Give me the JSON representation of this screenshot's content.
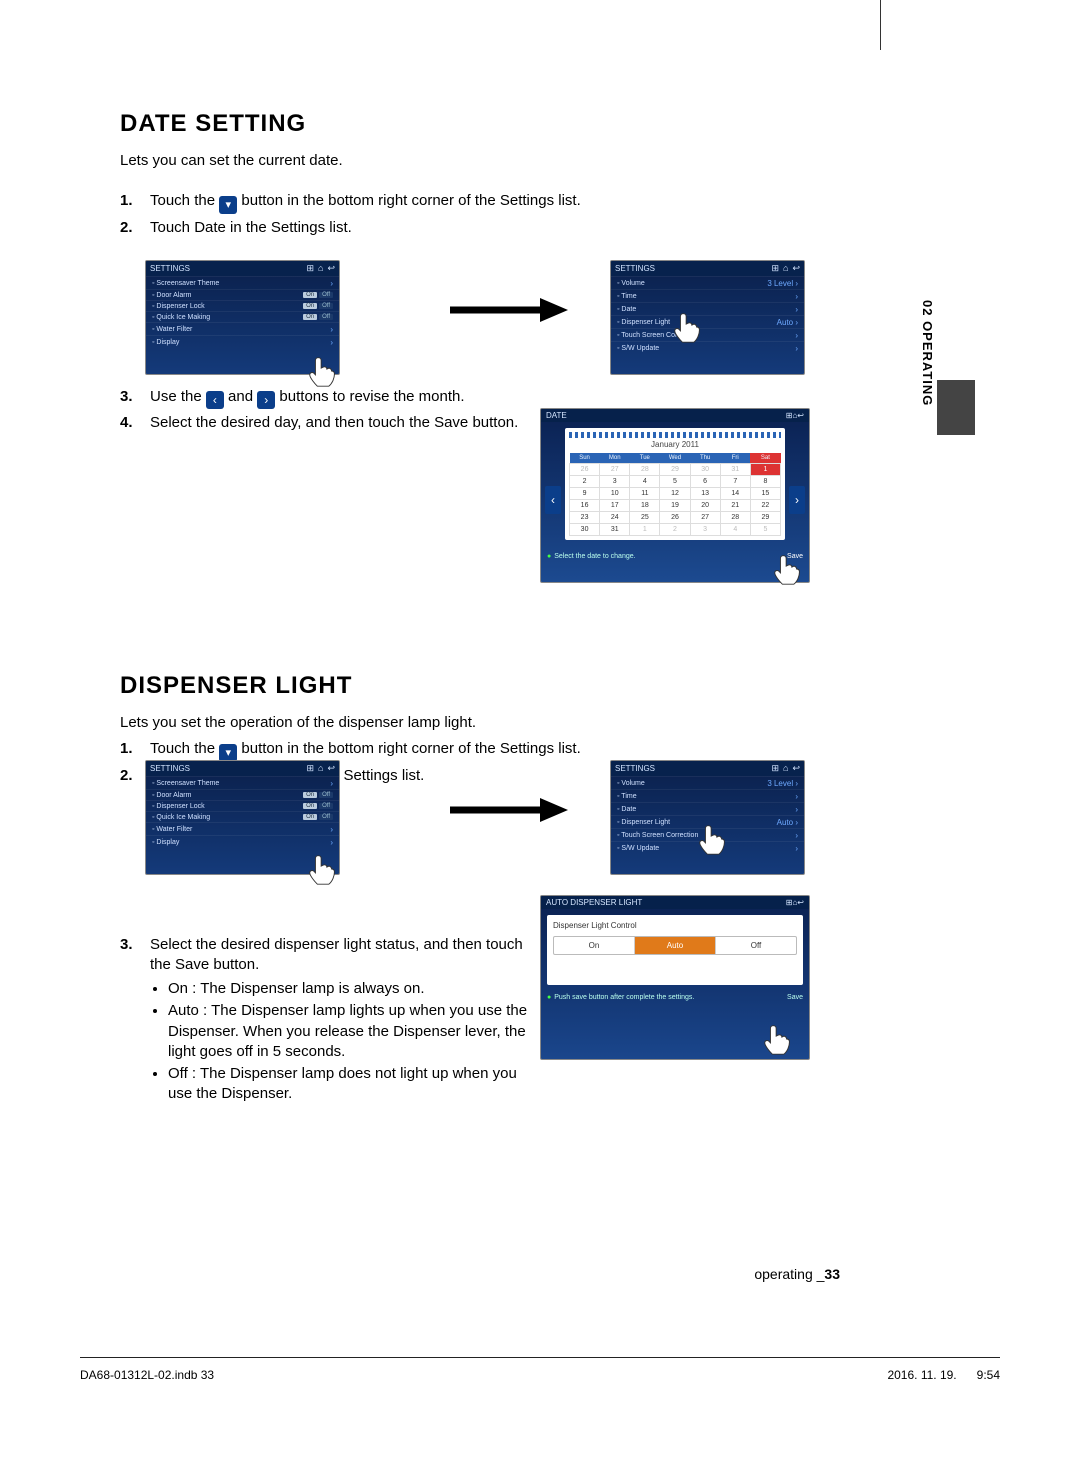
{
  "side_tab": "02  OPERATING",
  "section1": {
    "title": "DATE SETTING",
    "intro": "Lets you can set the current date.",
    "step1a": "Touch the ",
    "step1b": " button in the bottom right corner of the Settings list.",
    "step2": "Touch Date in the Settings list.",
    "step3a": "Use the ",
    "step3b": " and ",
    "step3c": " buttons to revise the month.",
    "step4": "Select the desired day, and then touch the Save button."
  },
  "settings_screen_a": {
    "title": "SETTINGS",
    "rows": [
      {
        "label": "Screensaver Theme",
        "chev": true
      },
      {
        "label": "Door Alarm",
        "toggle": [
          "On",
          "Off"
        ]
      },
      {
        "label": "Dispenser Lock",
        "toggle": [
          "On",
          "Off"
        ]
      },
      {
        "label": "Quick Ice Making",
        "toggle": [
          "On",
          "Off"
        ]
      },
      {
        "label": "Water Filter",
        "chev": true
      },
      {
        "label": "Display",
        "chev": true
      }
    ]
  },
  "settings_screen_b": {
    "title": "SETTINGS",
    "rows": [
      {
        "label": "Volume",
        "right": "3 Level",
        "chev": true
      },
      {
        "label": "Time",
        "chev": true
      },
      {
        "label": "Date",
        "chev": true
      },
      {
        "label": "Dispenser Light",
        "right": "Auto",
        "chev": true
      },
      {
        "label": "Touch Screen Correction",
        "chev": true
      },
      {
        "label": "S/W Update",
        "chev": true
      }
    ]
  },
  "calendar": {
    "title": "DATE",
    "month": "January 2011",
    "dow": [
      "Sun",
      "Mon",
      "Tue",
      "Wed",
      "Thu",
      "Fri",
      "Sat"
    ],
    "weeks": [
      [
        {
          "d": "26",
          "dim": 1
        },
        {
          "d": "27",
          "dim": 1
        },
        {
          "d": "28",
          "dim": 1
        },
        {
          "d": "29",
          "dim": 1
        },
        {
          "d": "30",
          "dim": 1
        },
        {
          "d": "31",
          "dim": 1
        },
        {
          "d": "1",
          "sel": 1
        }
      ],
      [
        {
          "d": "2"
        },
        {
          "d": "3"
        },
        {
          "d": "4"
        },
        {
          "d": "5"
        },
        {
          "d": "6"
        },
        {
          "d": "7"
        },
        {
          "d": "8"
        }
      ],
      [
        {
          "d": "9"
        },
        {
          "d": "10"
        },
        {
          "d": "11"
        },
        {
          "d": "12"
        },
        {
          "d": "13"
        },
        {
          "d": "14"
        },
        {
          "d": "15"
        }
      ],
      [
        {
          "d": "16"
        },
        {
          "d": "17"
        },
        {
          "d": "18"
        },
        {
          "d": "19"
        },
        {
          "d": "20"
        },
        {
          "d": "21"
        },
        {
          "d": "22"
        }
      ],
      [
        {
          "d": "23"
        },
        {
          "d": "24"
        },
        {
          "d": "25"
        },
        {
          "d": "26"
        },
        {
          "d": "27"
        },
        {
          "d": "28"
        },
        {
          "d": "29"
        }
      ],
      [
        {
          "d": "30"
        },
        {
          "d": "31"
        },
        {
          "d": "1",
          "dim": 1
        },
        {
          "d": "2",
          "dim": 1
        },
        {
          "d": "3",
          "dim": 1
        },
        {
          "d": "4",
          "dim": 1
        },
        {
          "d": "5",
          "dim": 1
        }
      ]
    ],
    "hint": "Select the date to change.",
    "save": "Save"
  },
  "section2": {
    "title": "DISPENSER LIGHT",
    "intro": "Lets you set the operation of the dispenser lamp light.",
    "step1a": "Touch the ",
    "step1b": " button in the bottom right corner of the Settings list.",
    "step2": "Touch Dispenser Light in the Settings list.",
    "step3": "Select the desired dispenser light status, and then touch the Save button.",
    "b1": "On : The Dispenser lamp is always on.",
    "b2": "Auto : The Dispenser lamp lights up when you use the Dispenser. When you release the Dispenser lever, the light goes off in 5 seconds.",
    "b3": "Off : The Dispenser lamp does not light up when you use the Dispenser."
  },
  "disp_screen": {
    "title": "AUTO DISPENSER LIGHT",
    "label": "Dispenser Light Control",
    "opts": [
      "On",
      "Auto",
      "Off"
    ],
    "hint": "Push save button after complete the settings.",
    "save": "Save"
  },
  "footer": {
    "label": "operating _",
    "page": "33"
  },
  "print": {
    "left": "DA68-01312L-02.indb   33",
    "right": "2016. 11. 19.      9:54"
  },
  "colors": {
    "panel": "#0b3e8a"
  }
}
